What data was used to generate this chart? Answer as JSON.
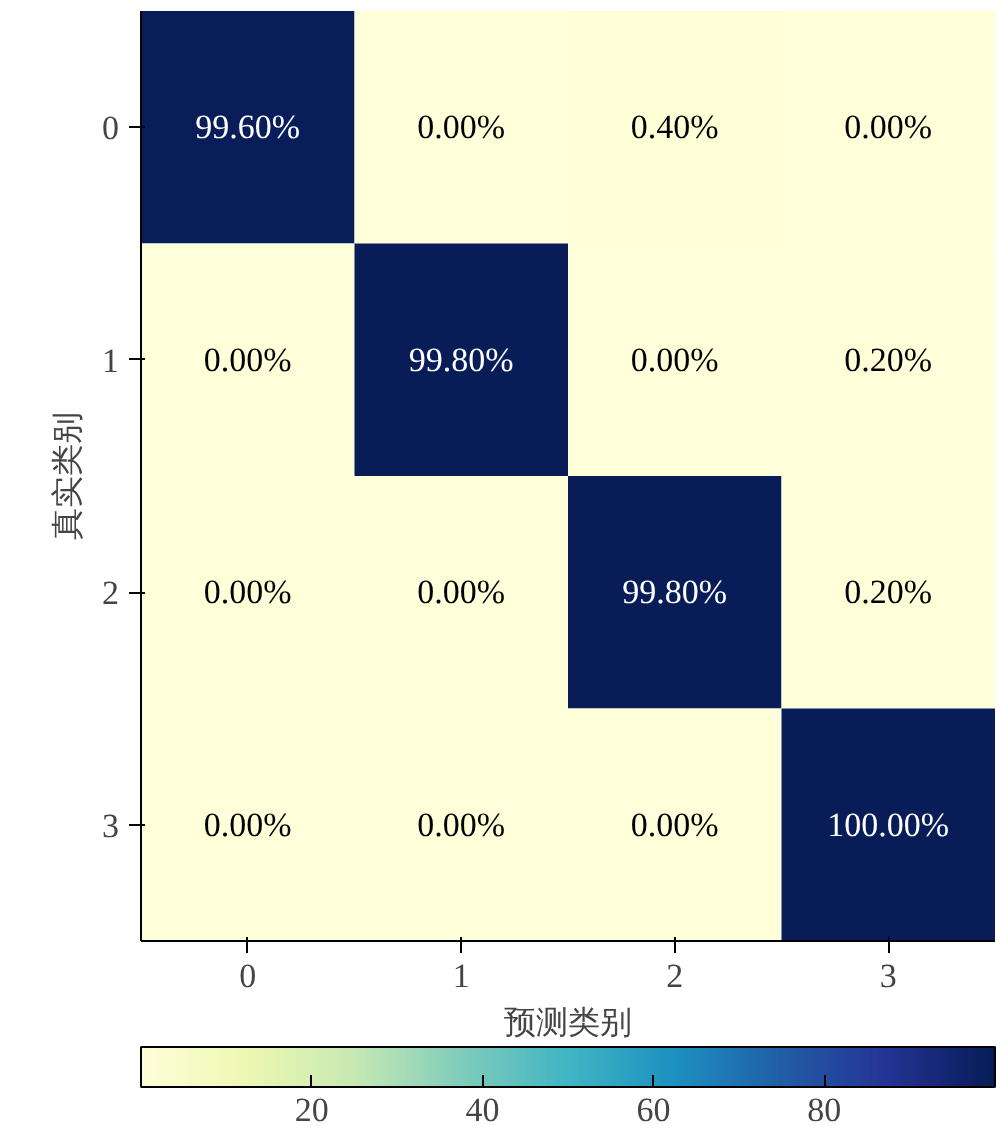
{
  "chart_data": {
    "type": "heatmap",
    "xlabel": "预测类别",
    "ylabel": "真实类别",
    "categories": [
      "0",
      "1",
      "2",
      "3"
    ],
    "y_categories": [
      "0",
      "1",
      "2",
      "3"
    ],
    "cells": [
      [
        99.6,
        0.0,
        0.4,
        0.0
      ],
      [
        0.0,
        99.8,
        0.0,
        0.2
      ],
      [
        0.0,
        0.0,
        99.8,
        0.2
      ],
      [
        0.0,
        0.0,
        0.0,
        100.0
      ]
    ],
    "cell_labels": [
      [
        "99.60%",
        "0.00%",
        "0.40%",
        "0.00%"
      ],
      [
        "0.00%",
        "99.80%",
        "0.00%",
        "0.20%"
      ],
      [
        "0.00%",
        "0.00%",
        "99.80%",
        "0.20%"
      ],
      [
        "0.00%",
        "0.00%",
        "0.00%",
        "100.00%"
      ]
    ],
    "clim": [
      0,
      100
    ],
    "cticks": [
      20,
      40,
      60,
      80
    ]
  }
}
